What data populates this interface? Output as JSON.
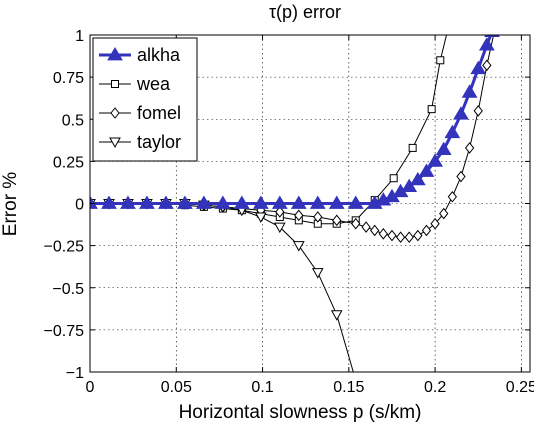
{
  "chart_data": {
    "type": "line",
    "title": "τ(p) error",
    "xlabel": "Horizontal slowness p (s/km)",
    "ylabel": "Error %",
    "xlim": [
      0,
      0.255
    ],
    "ylim": [
      -1,
      1
    ],
    "x_ticks": [
      0,
      0.05,
      0.1,
      0.15,
      0.2,
      0.25
    ],
    "x_tick_labels": [
      "0",
      "0.05",
      "0.1",
      "0.15",
      "0.2",
      "0.25"
    ],
    "y_ticks": [
      -1,
      -0.75,
      -0.5,
      -0.25,
      0,
      0.25,
      0.5,
      0.75,
      1
    ],
    "y_tick_labels": [
      "−1",
      "−0.75",
      "−0.5",
      "−0.25",
      "0",
      "0.25",
      "0.5",
      "0.75",
      "1"
    ],
    "grid": true,
    "legend_position": "top-left",
    "series": [
      {
        "name": "alkha",
        "color": "#3333bb",
        "marker": "triangle-up",
        "line_width": 3,
        "x": [
          0,
          0.011,
          0.022,
          0.033,
          0.044,
          0.055,
          0.066,
          0.077,
          0.088,
          0.099,
          0.11,
          0.121,
          0.132,
          0.143,
          0.154,
          0.165,
          0.17,
          0.175,
          0.18,
          0.185,
          0.19,
          0.195,
          0.2,
          0.205,
          0.21,
          0.215,
          0.22,
          0.225,
          0.23,
          0.233
        ],
        "y": [
          0,
          0,
          0,
          0,
          0,
          0,
          0,
          0,
          0,
          0,
          0,
          0,
          0,
          0,
          0,
          0,
          0.02,
          0.04,
          0.07,
          0.1,
          0.14,
          0.19,
          0.25,
          0.32,
          0.42,
          0.53,
          0.66,
          0.8,
          0.94,
          1.02
        ]
      },
      {
        "name": "wea",
        "color": "#000000",
        "marker": "square",
        "line_width": 1,
        "x": [
          0,
          0.011,
          0.022,
          0.033,
          0.044,
          0.055,
          0.066,
          0.077,
          0.088,
          0.099,
          0.11,
          0.121,
          0.132,
          0.143,
          0.154,
          0.165,
          0.176,
          0.187,
          0.198,
          0.203,
          0.209
        ],
        "y": [
          0,
          0,
          0,
          0,
          0,
          -0.01,
          -0.02,
          -0.03,
          -0.04,
          -0.06,
          -0.08,
          -0.1,
          -0.12,
          -0.12,
          -0.1,
          0.02,
          0.15,
          0.33,
          0.56,
          0.85,
          1.1
        ]
      },
      {
        "name": "fomel",
        "color": "#000000",
        "marker": "diamond",
        "line_width": 1,
        "x": [
          0,
          0.011,
          0.022,
          0.033,
          0.044,
          0.055,
          0.066,
          0.077,
          0.088,
          0.099,
          0.11,
          0.121,
          0.132,
          0.143,
          0.154,
          0.16,
          0.165,
          0.17,
          0.175,
          0.18,
          0.185,
          0.19,
          0.195,
          0.2,
          0.205,
          0.21,
          0.215,
          0.22,
          0.225,
          0.23,
          0.235
        ],
        "y": [
          0,
          0,
          0,
          0,
          0,
          0,
          -0.01,
          -0.02,
          -0.03,
          -0.04,
          -0.05,
          -0.07,
          -0.08,
          -0.1,
          -0.12,
          -0.14,
          -0.16,
          -0.18,
          -0.19,
          -0.2,
          -0.2,
          -0.19,
          -0.16,
          -0.12,
          -0.06,
          0.04,
          0.16,
          0.33,
          0.55,
          0.82,
          1.05
        ]
      },
      {
        "name": "taylor",
        "color": "#000000",
        "marker": "triangle-down",
        "line_width": 1,
        "x": [
          0,
          0.011,
          0.022,
          0.033,
          0.044,
          0.055,
          0.066,
          0.077,
          0.088,
          0.099,
          0.11,
          0.121,
          0.132,
          0.143,
          0.154
        ],
        "y": [
          0,
          0,
          0,
          0,
          0,
          0,
          -0.01,
          -0.02,
          -0.04,
          -0.08,
          -0.14,
          -0.25,
          -0.41,
          -0.66,
          -1.05
        ]
      }
    ]
  }
}
